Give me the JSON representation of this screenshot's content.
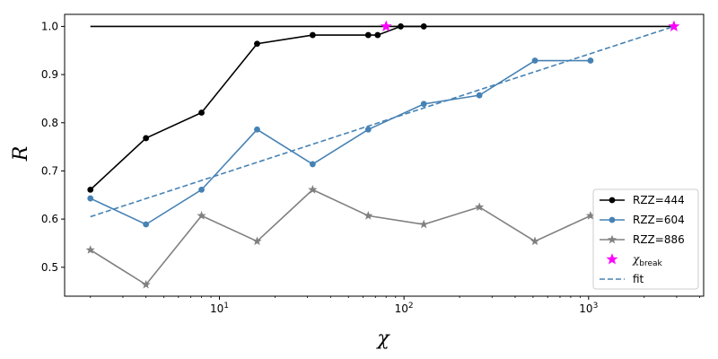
{
  "chart_data": {
    "type": "line",
    "title": "",
    "xlabel": "χ",
    "ylabel": "R",
    "xscale": "log",
    "xlim": [
      1.45,
      4200
    ],
    "ylim": [
      0.44,
      1.025
    ],
    "x_ticks": [
      {
        "value": 10,
        "base": "10",
        "exp": "1"
      },
      {
        "value": 100,
        "base": "10",
        "exp": "2"
      },
      {
        "value": 1000,
        "base": "10",
        "exp": "3"
      }
    ],
    "y_ticks": [
      {
        "value": 0.5,
        "label": "0.5"
      },
      {
        "value": 0.6,
        "label": "0.6"
      },
      {
        "value": 0.7,
        "label": "0.7"
      },
      {
        "value": 0.8,
        "label": "0.8"
      },
      {
        "value": 0.9,
        "label": "0.9"
      },
      {
        "value": 1.0,
        "label": "1.0"
      }
    ],
    "grid": false,
    "legend_position": "lower-right",
    "series": [
      {
        "name": "RZZ=444",
        "color": "#000000",
        "marker": "circle",
        "x": [
          2,
          4,
          8,
          16,
          32,
          64,
          72,
          96,
          128
        ],
        "y": [
          0.661,
          0.768,
          0.821,
          0.964,
          0.982,
          0.982,
          0.982,
          1.0,
          1.0
        ]
      },
      {
        "name": "RZZ=604",
        "color": "#4682b4",
        "marker": "circle",
        "x": [
          2,
          4,
          8,
          16,
          32,
          64,
          128,
          256,
          512,
          1024
        ],
        "y": [
          0.643,
          0.589,
          0.661,
          0.786,
          0.714,
          0.786,
          0.839,
          0.857,
          0.929,
          0.929
        ]
      },
      {
        "name": "RZZ=886",
        "color": "#808080",
        "marker": "star",
        "x": [
          2,
          4,
          8,
          16,
          32,
          64,
          128,
          256,
          512,
          1024
        ],
        "y": [
          0.536,
          0.464,
          0.607,
          0.554,
          0.661,
          0.607,
          0.589,
          0.625,
          0.554,
          0.607
        ]
      }
    ],
    "reference_line": {
      "x": [
        2,
        2900
      ],
      "y": [
        1.0,
        1.0
      ],
      "color": "#000000"
    },
    "chi_break": {
      "name": "χ",
      "name_sub": "break",
      "color": "#ff00ff",
      "marker": "star",
      "x": [
        80,
        2900
      ],
      "y": [
        1.0,
        1.0
      ]
    },
    "fit": {
      "name": "fit",
      "color": "#4682b4",
      "style": "dashed",
      "x": [
        2,
        2900
      ],
      "y": [
        0.605,
        1.0
      ]
    }
  }
}
